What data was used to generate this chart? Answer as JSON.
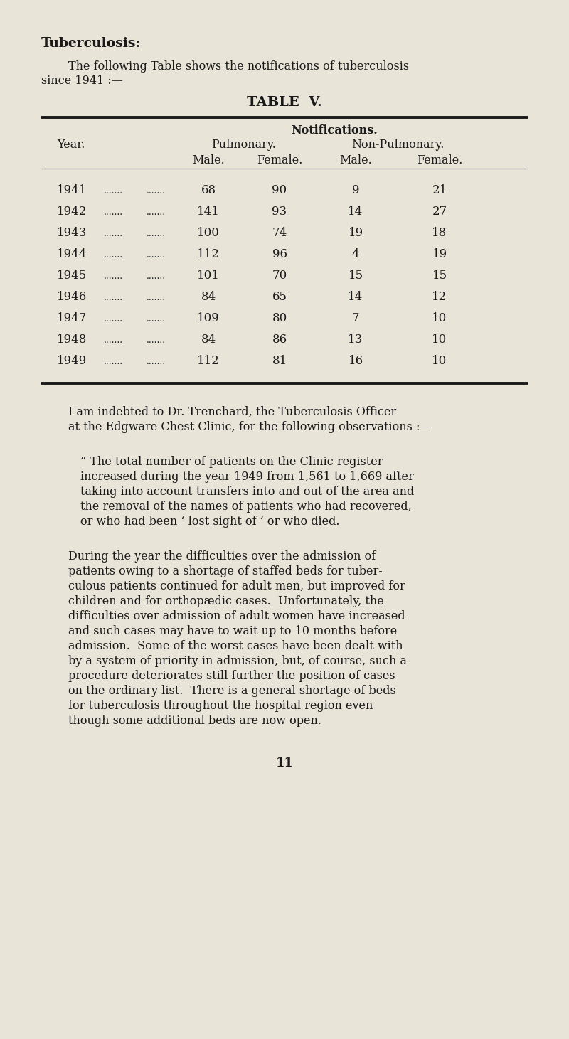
{
  "bg_color": "#e8e4d8",
  "title_bold": "Tuberculosis:",
  "intro_line1": "The following Table shows the notifications of tuberculosis",
  "intro_line2": "since 1941 :—",
  "table_title": "TABLE  V.",
  "col_header_1": "Notifications.",
  "col_header_2a": "Pulmonary.",
  "col_header_2b": "Non-Pulmonary.",
  "col_header_3a": "Male.",
  "col_header_3b": "Female.",
  "col_header_3c": "Male.",
  "col_header_3d": "Female.",
  "row_label": "Year.",
  "years": [
    "1941",
    "1942",
    "1943",
    "1944",
    "1945",
    "1946",
    "1947",
    "1948",
    "1949"
  ],
  "pulm_male": [
    68,
    141,
    100,
    112,
    101,
    84,
    109,
    84,
    112
  ],
  "pulm_female": [
    90,
    93,
    74,
    96,
    70,
    65,
    80,
    86,
    81
  ],
  "nonpulm_male": [
    9,
    14,
    19,
    4,
    15,
    14,
    7,
    13,
    16
  ],
  "nonpulm_female": [
    21,
    27,
    18,
    19,
    15,
    12,
    10,
    10,
    10
  ],
  "para1_line1": "I am indebted to Dr. Trenchard, the Tuberculosis Officer",
  "para1_line2": "at the Edgware Chest Clinic, for the following observations :—",
  "para2_lines": [
    "“ The total number of patients on the Clinic register",
    "increased during the year 1949 from 1,561 to 1,669 after",
    "taking into account transfers into and out of the area and",
    "the removal of the names of patients who had recovered,",
    "or who had been ‘ lost sight of ’ or who died."
  ],
  "para3_lines": [
    "During the year the difficulties over the admission of",
    "patients owing to a shortage of staffed beds for tuber-",
    "culous patients continued for adult men, but improved for",
    "children and for orthopædic cases.  Unfortunately, the",
    "difficulties over admission of adult women have increased",
    "and such cases may have to wait up to 10 months before",
    "admission.  Some of the worst cases have been dealt with",
    "by a system of priority in admission, but, of course, such a",
    "procedure deteriorates still further the position of cases",
    "on the ordinary list.  There is a general shortage of beds",
    "for tuberculosis throughout the hospital region even",
    "though some additional beds are now open."
  ],
  "page_number": "11",
  "text_color": "#1a1a1a"
}
